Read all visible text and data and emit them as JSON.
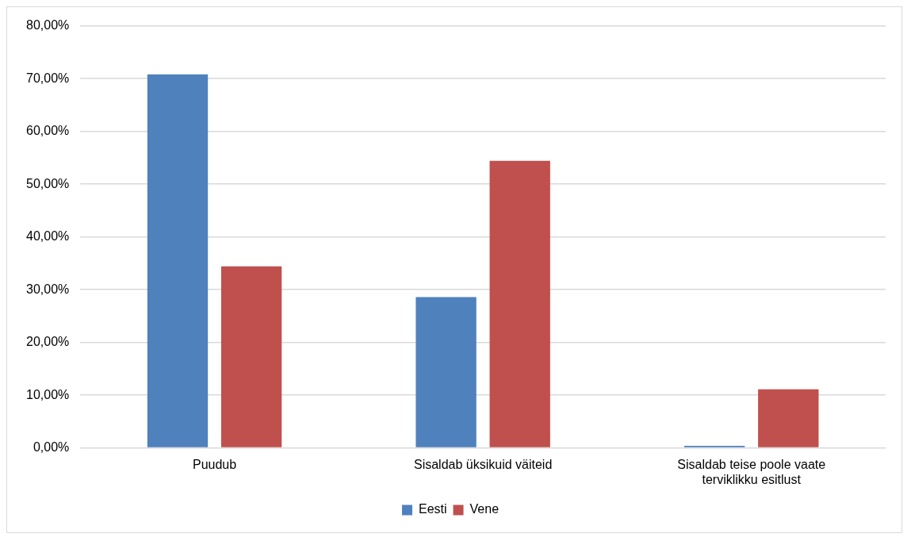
{
  "chart_data": {
    "type": "bar",
    "categories": [
      "Puudub",
      "Sisaldab üksikuid väiteid",
      "Sisaldab teise poole vaate terviklikku esitlust"
    ],
    "series": [
      {
        "name": "Eesti",
        "color": "#4f81bd",
        "values": [
          70.8,
          28.6,
          0.4
        ]
      },
      {
        "name": "Vene",
        "color": "#c0504d",
        "values": [
          34.4,
          54.4,
          11.1
        ]
      }
    ],
    "ylim": [
      0,
      80
    ],
    "yticks": [
      {
        "value": 0,
        "label": "0,00%"
      },
      {
        "value": 10,
        "label": "10,00%"
      },
      {
        "value": 20,
        "label": "20,00%"
      },
      {
        "value": 30,
        "label": "30,00%"
      },
      {
        "value": 40,
        "label": "40,00%"
      },
      {
        "value": 50,
        "label": "50,00%"
      },
      {
        "value": 60,
        "label": "60,00%"
      },
      {
        "value": 70,
        "label": "70,00%"
      },
      {
        "value": 80,
        "label": "80,00%"
      }
    ],
    "grid": "y",
    "legend": "bottom"
  }
}
